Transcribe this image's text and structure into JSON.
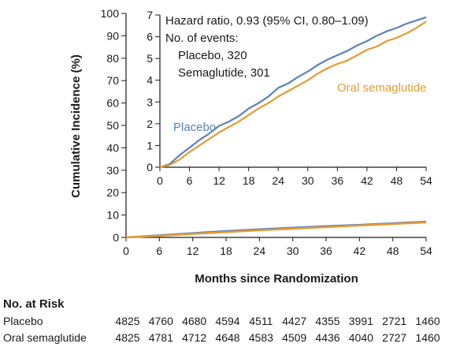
{
  "chart_data": [
    {
      "type": "line",
      "panel": "main",
      "xlabel": "Months since Randomization",
      "ylabel": "Cumulative Incidence (%)",
      "xlim": [
        0,
        54
      ],
      "ylim": [
        0,
        100
      ],
      "x_ticks": [
        0,
        6,
        12,
        18,
        24,
        30,
        36,
        42,
        48,
        54
      ],
      "y_ticks": [
        0,
        10,
        20,
        30,
        40,
        50,
        60,
        70,
        80,
        90,
        100
      ],
      "grid": false,
      "series": [
        {
          "name": "Placebo",
          "color": "#5a82bd",
          "points": [
            [
              0,
              0
            ],
            [
              6,
              0.9
            ],
            [
              12,
              1.9
            ],
            [
              18,
              2.8
            ],
            [
              24,
              3.6
            ],
            [
              30,
              4.3
            ],
            [
              36,
              5.0
            ],
            [
              42,
              5.6
            ],
            [
              48,
              6.3
            ],
            [
              54,
              7.0
            ]
          ]
        },
        {
          "name": "Oral semaglutide",
          "color": "#e59c32",
          "points": [
            [
              0,
              0
            ],
            [
              6,
              0.7
            ],
            [
              12,
              1.6
            ],
            [
              18,
              2.4
            ],
            [
              24,
              3.2
            ],
            [
              30,
              3.9
            ],
            [
              36,
              4.6
            ],
            [
              42,
              5.3
            ],
            [
              48,
              6.0
            ],
            [
              54,
              6.7
            ]
          ]
        }
      ]
    },
    {
      "type": "line",
      "panel": "inset",
      "xlim": [
        0,
        54
      ],
      "ylim": [
        0,
        7
      ],
      "x_ticks": [
        0,
        6,
        12,
        18,
        24,
        30,
        36,
        42,
        48,
        54
      ],
      "y_ticks": [
        0,
        1,
        2,
        3,
        4,
        5,
        6,
        7
      ],
      "grid": false,
      "annotation_lines": [
        "Hazard ratio, 0.93 (95% CI, 0.80–1.09)",
        "No. of events:",
        "Placebo, 320",
        "Semaglutide, 301"
      ],
      "series": [
        {
          "name": "Placebo",
          "color": "#5a82bd",
          "points": [
            [
              0,
              0
            ],
            [
              2,
              0.15
            ],
            [
              4,
              0.55
            ],
            [
              6,
              0.9
            ],
            [
              8,
              1.25
            ],
            [
              10,
              1.55
            ],
            [
              12,
              1.9
            ],
            [
              14,
              2.1
            ],
            [
              16,
              2.35
            ],
            [
              18,
              2.7
            ],
            [
              20,
              2.95
            ],
            [
              22,
              3.25
            ],
            [
              24,
              3.65
            ],
            [
              26,
              3.85
            ],
            [
              28,
              4.15
            ],
            [
              30,
              4.4
            ],
            [
              32,
              4.7
            ],
            [
              34,
              4.95
            ],
            [
              36,
              5.15
            ],
            [
              38,
              5.35
            ],
            [
              40,
              5.6
            ],
            [
              42,
              5.8
            ],
            [
              44,
              6.05
            ],
            [
              46,
              6.25
            ],
            [
              48,
              6.4
            ],
            [
              50,
              6.6
            ],
            [
              52,
              6.75
            ],
            [
              54,
              6.9
            ]
          ]
        },
        {
          "name": "Oral semaglutide",
          "color": "#e59c32",
          "points": [
            [
              0,
              0
            ],
            [
              2,
              0.1
            ],
            [
              4,
              0.35
            ],
            [
              6,
              0.7
            ],
            [
              8,
              1.0
            ],
            [
              10,
              1.3
            ],
            [
              12,
              1.6
            ],
            [
              14,
              1.85
            ],
            [
              16,
              2.1
            ],
            [
              18,
              2.4
            ],
            [
              20,
              2.7
            ],
            [
              22,
              2.95
            ],
            [
              24,
              3.25
            ],
            [
              26,
              3.5
            ],
            [
              28,
              3.75
            ],
            [
              30,
              4.0
            ],
            [
              32,
              4.3
            ],
            [
              34,
              4.55
            ],
            [
              36,
              4.75
            ],
            [
              38,
              4.9
            ],
            [
              40,
              5.15
            ],
            [
              42,
              5.4
            ],
            [
              44,
              5.55
            ],
            [
              46,
              5.8
            ],
            [
              48,
              5.95
            ],
            [
              50,
              6.15
            ],
            [
              52,
              6.4
            ],
            [
              54,
              6.7
            ]
          ]
        }
      ]
    },
    {
      "type": "table",
      "panel": "at-risk",
      "title": "No. at Risk",
      "rows": [
        {
          "label": "Placebo",
          "values": [
            4825,
            4760,
            4680,
            4594,
            4511,
            4427,
            4355,
            3991,
            2721,
            1460
          ]
        },
        {
          "label": "Oral semaglutide",
          "values": [
            4825,
            4781,
            4712,
            4648,
            4583,
            4509,
            4436,
            4040,
            2727,
            1460
          ]
        }
      ]
    }
  ]
}
